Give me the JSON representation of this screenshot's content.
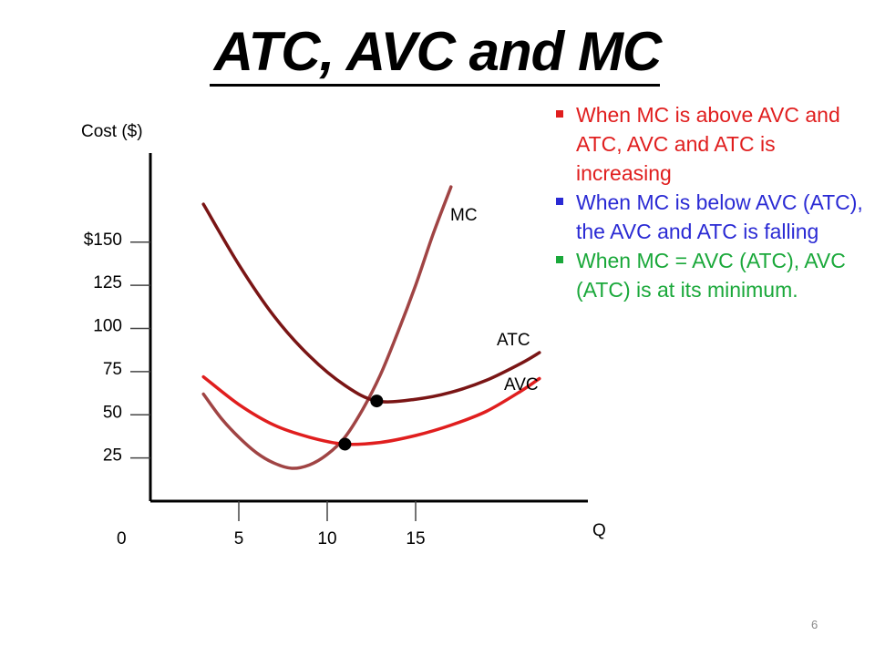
{
  "title": "ATC, AVC and MC",
  "page_number": "6",
  "bullets": [
    {
      "text": "When MC is above AVC  and ATC, AVC and ATC is increasing",
      "color": "#e01e1e"
    },
    {
      "text": "When MC is below AVC (ATC), the AVC and ATC is falling",
      "color": "#2a2ad4"
    },
    {
      "text": "When MC = AVC (ATC),  AVC (ATC) is at its minimum.",
      "color": "#1aa83a"
    }
  ],
  "chart_data": {
    "type": "line",
    "title": "ATC, AVC and MC",
    "ylabel": "Cost ($)",
    "xlabel": "Q",
    "y_ticks": [
      25,
      50,
      75,
      100,
      125,
      150
    ],
    "y_tick_labels": [
      "25",
      "50",
      "75",
      "100",
      "125",
      "$150"
    ],
    "x_ticks": [
      5,
      10,
      15
    ],
    "x_tick_labels": [
      "5",
      "10",
      "15"
    ],
    "origin_label": "0",
    "xlim": [
      0,
      25
    ],
    "ylim": [
      0,
      200
    ],
    "grid": false,
    "series": [
      {
        "name": "MC",
        "color": "#a04444",
        "x": [
          3,
          4,
          5,
          6,
          7,
          8,
          9,
          10,
          11,
          12,
          13,
          14,
          15,
          16,
          17
        ],
        "y": [
          62,
          48,
          37,
          28,
          22,
          19,
          21,
          27,
          37,
          53,
          73,
          98,
          125,
          155,
          182
        ]
      },
      {
        "name": "ATC",
        "color": "#7a1515",
        "x": [
          3,
          5,
          7,
          9,
          11,
          12.8,
          15,
          17,
          19,
          21,
          22
        ],
        "y": [
          172,
          137,
          107,
          84,
          67,
          58,
          59,
          63,
          70,
          80,
          86
        ]
      },
      {
        "name": "AVC",
        "color": "#e01e1e",
        "x": [
          3,
          5,
          7,
          9,
          11,
          13,
          15,
          17,
          19,
          21,
          22
        ],
        "y": [
          72,
          56,
          44,
          37,
          33,
          34,
          38,
          44,
          52,
          64,
          71
        ]
      }
    ],
    "points": [
      {
        "x": 12.8,
        "y": 58
      },
      {
        "x": 11,
        "y": 33
      }
    ]
  }
}
